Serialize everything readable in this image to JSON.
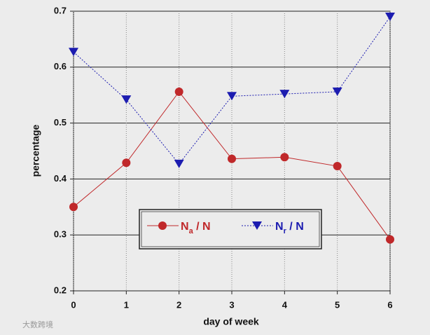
{
  "chart_data": {
    "type": "line",
    "x": [
      0,
      1,
      2,
      3,
      4,
      5,
      6
    ],
    "xlim": [
      0,
      6
    ],
    "xticks": [
      0,
      1,
      2,
      3,
      4,
      5,
      6
    ],
    "ylim": [
      0.2,
      0.7
    ],
    "yticks": [
      0.2,
      0.3,
      0.4,
      0.5,
      0.6,
      0.7
    ],
    "xlabel": "day  of week",
    "ylabel": "percentage",
    "grid": true,
    "series": [
      {
        "name": "Na / N",
        "color": "#c0282a",
        "linestyle": "solid",
        "marker": "circle",
        "values": [
          0.35,
          0.429,
          0.556,
          0.436,
          0.439,
          0.423,
          0.292
        ]
      },
      {
        "name": "Nr / N",
        "color": "#1c1cb0",
        "linestyle": "dotted",
        "marker": "triangle-down",
        "values": [
          0.627,
          0.542,
          0.427,
          0.548,
          0.552,
          0.556,
          0.69
        ]
      }
    ],
    "watermark": "大数跨境"
  }
}
